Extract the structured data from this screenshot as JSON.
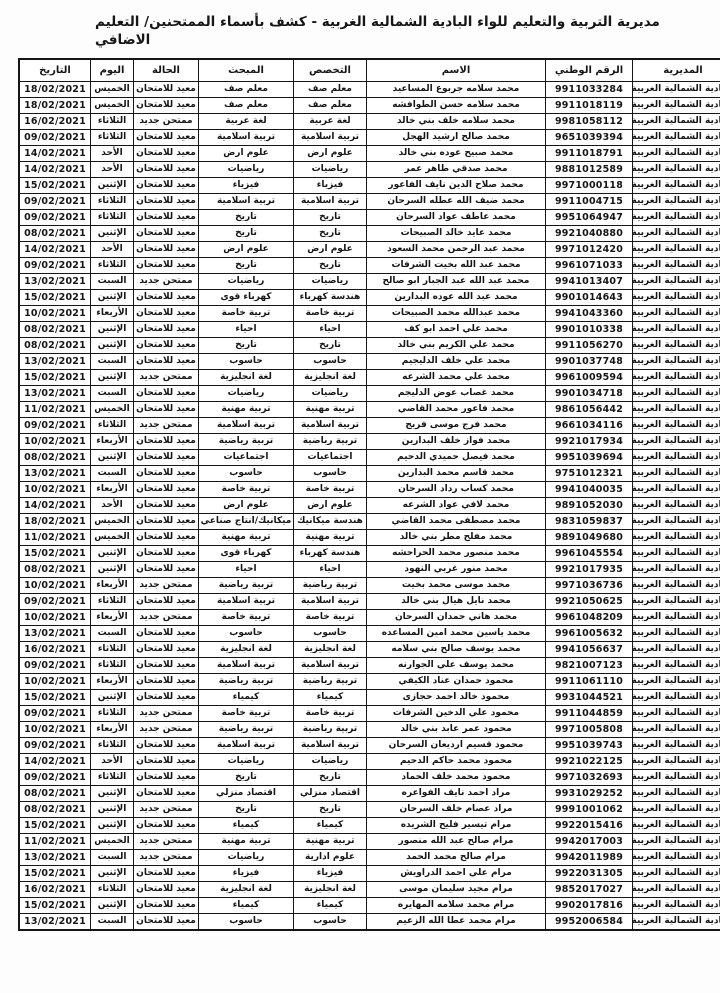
{
  "document": {
    "title_full": "مديرية التربية والتعليم للواء البادية الشمالية الغربية - كشف بأسماء الممتحنين/ التعليم الاضافي",
    "title_line1": "مديرية التربية والتعليم للواء البادية الشمالية الغربية - كشف بأسماء الممتحنين/ التعليم",
    "title_line2": "الاضافي",
    "text_color": "#161616",
    "border_color": "#161616",
    "background_color": "#fdfdfd"
  },
  "table": {
    "columns": [
      {
        "key": "directorate",
        "label": "المديرية"
      },
      {
        "key": "national_id",
        "label": "الرقم الوطني"
      },
      {
        "key": "name",
        "label": "الاسم"
      },
      {
        "key": "specialization",
        "label": "التخصص"
      },
      {
        "key": "subject",
        "label": "المبحث"
      },
      {
        "key": "status",
        "label": "الحالة"
      },
      {
        "key": "day",
        "label": "اليوم"
      },
      {
        "key": "date",
        "label": "التاريخ"
      }
    ],
    "rows": [
      [
        "البادية الشمالية الغربية",
        "9911033284",
        "محمد سلامه جربوع المساعيد",
        "معلم صف",
        "معلم صف",
        "معيد للامتحان",
        "الخميس",
        "18/02/2021"
      ],
      [
        "البادية الشمالية الغربية",
        "9911018119",
        "محمد سلامه حسن الطوافشه",
        "معلم صف",
        "معلم صف",
        "معيد للامتحان",
        "الخميس",
        "18/02/2021"
      ],
      [
        "البادية الشمالية الغربية",
        "9981058112",
        "محمد سلامه خلف بني خالد",
        "لغة عربية",
        "لغة عربية",
        "ممتحن جديد",
        "الثلاثاء",
        "16/02/2021"
      ],
      [
        "البادية الشمالية الغربية",
        "9651039394",
        "محمد صالح ارشيد الهجل",
        "تربية اسلامية",
        "تربية اسلامية",
        "معيد للامتحان",
        "الثلاثاء",
        "09/02/2021"
      ],
      [
        "البادية الشمالية الغربية",
        "9911018791",
        "محمد صبيح عوده بني خالد",
        "علوم ارض",
        "علوم ارض",
        "معيد للامتحان",
        "الأحد",
        "14/02/2021"
      ],
      [
        "البادية الشمالية الغربية",
        "9881012589",
        "محمد صدقي طاهر عمر",
        "رياضيات",
        "رياضيات",
        "معيد للامتحان",
        "الأحد",
        "14/02/2021"
      ],
      [
        "البادية الشمالية الغربية",
        "9971000118",
        "محمد صلاح الدين نايف الفاعور",
        "فيزياء",
        "فيزياء",
        "معيد للامتحان",
        "الإثنين",
        "15/02/2021"
      ],
      [
        "البادية الشمالية الغربية",
        "9911004715",
        "محمد ضيف الله عطله السرحان",
        "تربية اسلامية",
        "تربية اسلامية",
        "معيد للامتحان",
        "الثلاثاء",
        "09/02/2021"
      ],
      [
        "البادية الشمالية الغربية",
        "9951064947",
        "محمد عاطف عواد السرحان",
        "تاريخ",
        "تاريخ",
        "معيد للامتحان",
        "الثلاثاء",
        "09/02/2021"
      ],
      [
        "البادية الشمالية الغربية",
        "9921040880",
        "محمد عايد خالد الصبيحات",
        "تاريخ",
        "تاريخ",
        "معيد للامتحان",
        "الإثنين",
        "08/02/2021"
      ],
      [
        "البادية الشمالية الغربية",
        "9971012420",
        "محمد عبد الرحمن محمد السعود",
        "علوم ارض",
        "علوم ارض",
        "معيد للامتحان",
        "الأحد",
        "14/02/2021"
      ],
      [
        "البادية الشمالية الغربية",
        "9961071033",
        "محمد عبد الله بخيت الشرفات",
        "تاريخ",
        "تاريخ",
        "معيد للامتحان",
        "الثلاثاء",
        "09/02/2021"
      ],
      [
        "البادية الشمالية الغربية",
        "9941013407",
        "محمد عبد الله عبد الجبار ابو صالح",
        "رياضيات",
        "رياضيات",
        "ممتحن جديد",
        "السبت",
        "13/02/2021"
      ],
      [
        "البادية الشمالية الغربية",
        "9901014643",
        "محمد عبد الله عوده البدارين",
        "هندسة كهرباء",
        "كهرباء قوى",
        "معيد للامتحان",
        "الإثنين",
        "15/02/2021"
      ],
      [
        "البادية الشمالية الغربية",
        "9941043360",
        "محمد عبدالله محمد الصبيحات",
        "تربية خاصة",
        "تربية خاصة",
        "معيد للامتحان",
        "الأربعاء",
        "10/02/2021"
      ],
      [
        "البادية الشمالية الغربية",
        "9901010338",
        "محمد علي احمد ابو كف",
        "احياء",
        "احياء",
        "معيد للامتحان",
        "الإثنين",
        "08/02/2021"
      ],
      [
        "البادية الشمالية الغربية",
        "9911056270",
        "محمد علي الكريم بني خالد",
        "تاريخ",
        "تاريخ",
        "معيد للامتحان",
        "الإثنين",
        "08/02/2021"
      ],
      [
        "البادية الشمالية الغربية",
        "9901037748",
        "محمد علي خلف الدليجيم",
        "حاسوب",
        "حاسوب",
        "معيد للامتحان",
        "السبت",
        "13/02/2021"
      ],
      [
        "البادية الشمالية الغربية",
        "9961009594",
        "محمد علي محمد الشرعه",
        "لغة انجليزية",
        "لغة انجليزية",
        "ممتحن جديد",
        "الإثنين",
        "15/02/2021"
      ],
      [
        "البادية الشمالية الغربية",
        "9901034718",
        "محمد غصاب عوض الدليجم",
        "رياضيات",
        "رياضيات",
        "معيد للامتحان",
        "السبت",
        "13/02/2021"
      ],
      [
        "البادية الشمالية الغربية",
        "9861056442",
        "محمد فاعور محمد القاضي",
        "تربية مهنية",
        "تربية مهنية",
        "معيد للامتحان",
        "الخميس",
        "11/02/2021"
      ],
      [
        "البادية الشمالية الغربية",
        "9661034116",
        "محمد فرج موسى فريج",
        "تربية اسلامية",
        "تربية اسلامية",
        "ممتحن جديد",
        "الثلاثاء",
        "09/02/2021"
      ],
      [
        "البادية الشمالية الغربية",
        "9921017934",
        "محمد فواز خلف البدارين",
        "تربية رياضية",
        "تربية رياضية",
        "معيد للامتحان",
        "الأربعاء",
        "10/02/2021"
      ],
      [
        "البادية الشمالية الغربية",
        "9951039694",
        "محمد فيصل حميدي الدحيم",
        "اجتماعيات",
        "اجتماعيات",
        "معيد للامتحان",
        "الإثنين",
        "08/02/2021"
      ],
      [
        "البادية الشمالية الغربية",
        "9751012321",
        "محمد قاسم محمد البدارين",
        "حاسوب",
        "حاسوب",
        "معيد للامتحان",
        "السبت",
        "13/02/2021"
      ],
      [
        "البادية الشمالية الغربية",
        "9941040035",
        "محمد كساب رداد السرحان",
        "تربية خاصة",
        "تربية خاصة",
        "معيد للامتحان",
        "الأربعاء",
        "10/02/2021"
      ],
      [
        "البادية الشمالية الغربية",
        "9891052030",
        "محمد لافي عواد الشرعه",
        "علوم ارض",
        "علوم ارض",
        "معيد للامتحان",
        "الأحد",
        "14/02/2021"
      ],
      [
        "البادية الشمالية الغربية",
        "9831059837",
        "محمد مصطفى محمد القاضي",
        "هندسة ميكانيك",
        "ميكانيك/انتاج صناعي",
        "معيد للامتحان",
        "الخميس",
        "18/02/2021"
      ],
      [
        "البادية الشمالية الغربية",
        "9891049680",
        "محمد مفلح مطر بني خالد",
        "تربية مهنية",
        "تربية مهنية",
        "معيد للامتحان",
        "الخميس",
        "11/02/2021"
      ],
      [
        "البادية الشمالية الغربية",
        "9961045554",
        "محمد منصور محمد الحراحشه",
        "هندسة كهرباء",
        "كهرباء قوى",
        "معيد للامتحان",
        "الإثنين",
        "15/02/2021"
      ],
      [
        "البادية الشمالية الغربية",
        "9921017935",
        "محمد منور غربي النهود",
        "احياء",
        "احياء",
        "معيد للامتحان",
        "الإثنين",
        "08/02/2021"
      ],
      [
        "البادية الشمالية الغربية",
        "9971036736",
        "محمد موسى محمد بخيت",
        "تربية رياضية",
        "تربية رياضية",
        "ممتحن جديد",
        "الأربعاء",
        "10/02/2021"
      ],
      [
        "البادية الشمالية الغربية",
        "9921050625",
        "محمد نايل هيال بني خالد",
        "تربية اسلامية",
        "تربية اسلامية",
        "معيد للامتحان",
        "الثلاثاء",
        "09/02/2021"
      ],
      [
        "البادية الشمالية الغربية",
        "9961048209",
        "محمد هاني حمدان السرحان",
        "تربية خاصة",
        "تربية خاصة",
        "ممتحن جديد",
        "الأربعاء",
        "10/02/2021"
      ],
      [
        "البادية الشمالية الغربية",
        "9961005632",
        "محمد ياسين محمد امين المساعده",
        "حاسوب",
        "حاسوب",
        "معيد للامتحان",
        "السبت",
        "13/02/2021"
      ],
      [
        "البادية الشمالية الغربية",
        "9941056637",
        "محمد يوسف صالح بني سلامه",
        "لغة انجليزية",
        "لغة انجليزية",
        "معيد للامتحان",
        "الثلاثاء",
        "16/02/2021"
      ],
      [
        "البادية الشمالية الغربية",
        "9821007123",
        "محمد يوسف علي الجوارنه",
        "تربية اسلامية",
        "تربية اسلامية",
        "معيد للامتحان",
        "الثلاثاء",
        "09/02/2021"
      ],
      [
        "البادية الشمالية الغربية",
        "9911061110",
        "محمود حمدان عناد الكيفي",
        "تربية رياضية",
        "تربية رياضية",
        "معيد للامتحان",
        "الأربعاء",
        "10/02/2021"
      ],
      [
        "البادية الشمالية الغربية",
        "9931044521",
        "محمود خالد احمد حجازى",
        "كيمياء",
        "كيمياء",
        "معيد للامتحان",
        "الإثنين",
        "15/02/2021"
      ],
      [
        "البادية الشمالية الغربية",
        "9911044859",
        "محمود علي الدخين الشرفات",
        "تربية خاصة",
        "تربية خاصة",
        "ممتحن جديد",
        "الثلاثاء",
        "09/02/2021"
      ],
      [
        "البادية الشمالية الغربية",
        "9971005808",
        "محمود عمر عابد بني خالد",
        "تربية رياضية",
        "تربية رياضية",
        "ممتحن جديد",
        "الأربعاء",
        "10/02/2021"
      ],
      [
        "البادية الشمالية الغربية",
        "9951039743",
        "محمود قسيم ارديعان السرحان",
        "تربية اسلامية",
        "تربية اسلامية",
        "معيد للامتحان",
        "الثلاثاء",
        "09/02/2021"
      ],
      [
        "البادية الشمالية الغربية",
        "9921022125",
        "محمود محمد حاكم الدحيم",
        "رياضيات",
        "رياضيات",
        "معيد للامتحان",
        "الأحد",
        "14/02/2021"
      ],
      [
        "البادية الشمالية الغربية",
        "9971032693",
        "محمود محمد خلف الحماد",
        "تاريخ",
        "تاريخ",
        "معيد للامتحان",
        "الثلاثاء",
        "09/02/2021"
      ],
      [
        "البادية الشمالية الغربية",
        "9931029252",
        "مراد احمد نايف الفواعره",
        "اقتصاد منزلي",
        "اقتصاد منزلي",
        "معيد للامتحان",
        "الإثنين",
        "08/02/2021"
      ],
      [
        "البادية الشمالية الغربية",
        "9991001062",
        "مراد عصام خلف السرحان",
        "تاريخ",
        "تاريخ",
        "ممتحن جديد",
        "الإثنين",
        "08/02/2021"
      ],
      [
        "البادية الشمالية الغربية",
        "9922015416",
        "مرام تيسير فليح الشريده",
        "كيمياء",
        "كيمياء",
        "معيد للامتحان",
        "الإثنين",
        "15/02/2021"
      ],
      [
        "البادية الشمالية الغربية",
        "9942017003",
        "مرام صالح عبد الله منصور",
        "تربية مهنية",
        "تربية مهنية",
        "ممتحن جديد",
        "الخميس",
        "11/02/2021"
      ],
      [
        "البادية الشمالية الغربية",
        "9942011989",
        "مرام صالح محمد الحمد",
        "علوم ادارية",
        "رياضيات",
        "ممتحن جديد",
        "السبت",
        "13/02/2021"
      ],
      [
        "البادية الشمالية الغربية",
        "9922031305",
        "مرام علي احمد الدراويش",
        "فيزياء",
        "فيزياء",
        "معيد للامتحان",
        "الإثنين",
        "15/02/2021"
      ],
      [
        "البادية الشمالية الغربية",
        "9852017027",
        "مرام مجيد سليمان موسى",
        "لغة انجليزية",
        "لغة انجليزية",
        "معيد للامتحان",
        "الثلاثاء",
        "16/02/2021"
      ],
      [
        "البادية الشمالية الغربية",
        "9902017816",
        "مرام محمد سلامه المهايره",
        "كيمياء",
        "كيمياء",
        "معيد للامتحان",
        "الإثنين",
        "15/02/2021"
      ],
      [
        "البادية الشمالية الغربية",
        "9952006584",
        "مرام محمد عطا الله الزعيم",
        "حاسوب",
        "حاسوب",
        "معيد للامتحان",
        "السبت",
        "13/02/2021"
      ]
    ]
  }
}
